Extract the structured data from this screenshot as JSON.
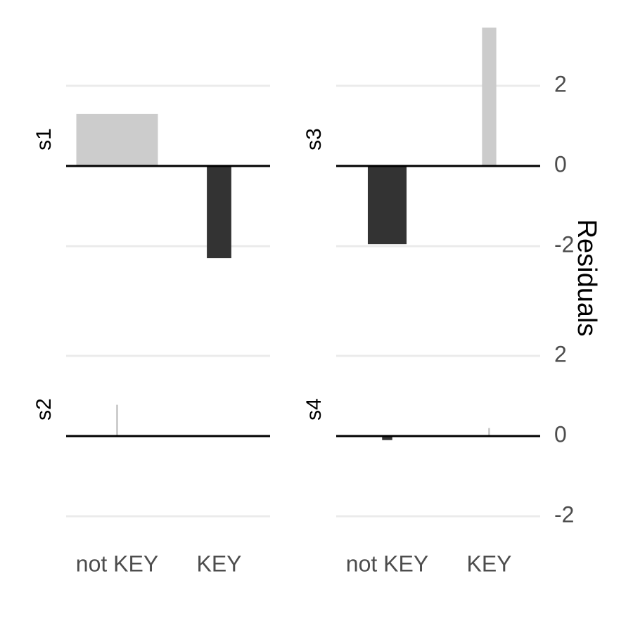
{
  "chart_data": {
    "type": "bar",
    "ylabel": "Residuals",
    "categories": [
      "not KEY",
      "KEY"
    ],
    "yticks": [
      -2,
      0,
      2
    ],
    "grid": true,
    "colors": {
      "gridline": "#ebebeb",
      "baseline": "#000000",
      "tick_text": "#4d4d4d",
      "label_text": "#000000"
    },
    "panels": [
      {
        "label": "s1",
        "ylim": [
          -2.7,
          4.0
        ],
        "bars": [
          {
            "category": "not KEY",
            "value": 1.3,
            "width_fraction": 0.4,
            "color": "#cccccc"
          },
          {
            "category": "KEY",
            "value": -2.3,
            "width_fraction": 0.12,
            "color": "#333333"
          }
        ]
      },
      {
        "label": "s3",
        "ylim": [
          -2.7,
          4.0
        ],
        "bars": [
          {
            "category": "not KEY",
            "value": -1.95,
            "width_fraction": 0.19,
            "color": "#333333"
          },
          {
            "category": "KEY",
            "value": 3.45,
            "width_fraction": 0.07,
            "color": "#cccccc"
          }
        ]
      },
      {
        "label": "s2",
        "ylim": [
          -2.7,
          4.0
        ],
        "bars": [
          {
            "category": "not KEY",
            "value": 0.78,
            "width_fraction": 0.01,
            "color": "#cccccc"
          },
          {
            "category": "KEY",
            "value": 0.0,
            "width_fraction": 0.05,
            "color": "#333333"
          }
        ]
      },
      {
        "label": "s4",
        "ylim": [
          -2.7,
          4.0
        ],
        "bars": [
          {
            "category": "not KEY",
            "value": -0.1,
            "width_fraction": 0.05,
            "color": "#333333"
          },
          {
            "category": "KEY",
            "value": 0.2,
            "width_fraction": 0.01,
            "color": "#cccccc"
          }
        ]
      }
    ]
  }
}
